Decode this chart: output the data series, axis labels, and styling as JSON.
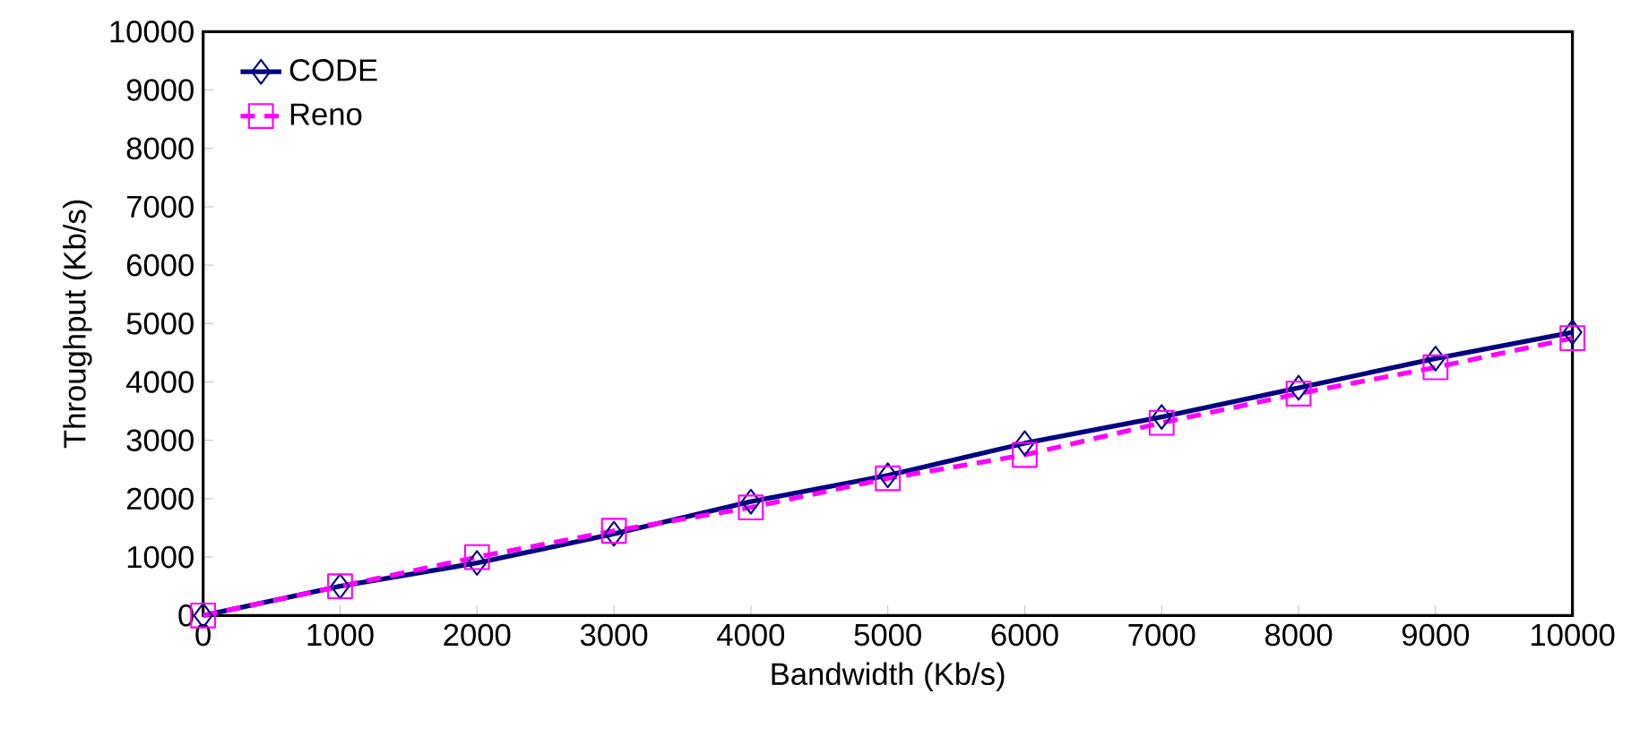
{
  "chart_data": {
    "type": "line",
    "xlabel": "Bandwidth (Kb/s)",
    "ylabel": "Throughput (Kb/s)",
    "x": [
      0,
      1000,
      2000,
      3000,
      4000,
      5000,
      6000,
      7000,
      8000,
      9000,
      10000
    ],
    "series": [
      {
        "name": "CODE",
        "color": "#000080",
        "marker": "diamond",
        "line_style": "solid",
        "values": [
          0,
          500,
          900,
          1400,
          1950,
          2400,
          2950,
          3400,
          3900,
          4400,
          4850
        ]
      },
      {
        "name": "Reno",
        "color": "#ff00ff",
        "marker": "square",
        "line_style": "dashed",
        "values": [
          0,
          500,
          1000,
          1450,
          1850,
          2350,
          2750,
          3300,
          3800,
          4250,
          4750
        ]
      }
    ],
    "xlim": [
      0,
      10000
    ],
    "ylim": [
      0,
      10000
    ],
    "xticks": [
      0,
      1000,
      2000,
      3000,
      4000,
      5000,
      6000,
      7000,
      8000,
      9000,
      10000
    ],
    "yticks": [
      0,
      1000,
      2000,
      3000,
      4000,
      5000,
      6000,
      7000,
      8000,
      9000,
      10000
    ],
    "grid": false,
    "legend": "top left"
  }
}
